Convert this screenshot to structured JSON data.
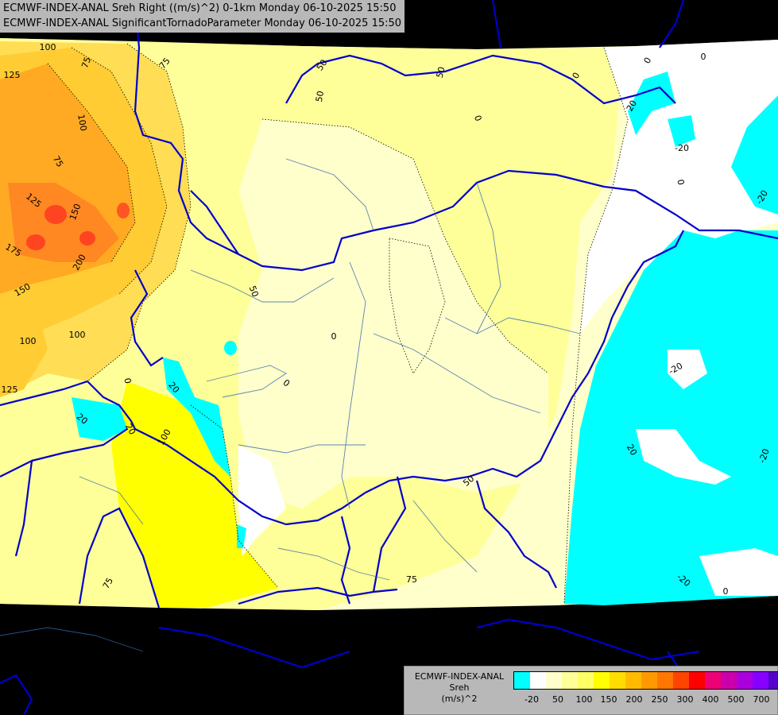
{
  "header": {
    "line1": "ECMWF-INDEX-ANAL Sreh Right ((m/s)^2) 0-1km Monday 06-10-2025 15:50",
    "line2": "ECMWF-INDEX-ANAL SignificantTornadoParameter Monday 06-10-2025 15:50"
  },
  "contour_labels": [
    {
      "text": "100"
    },
    {
      "text": "75"
    },
    {
      "text": "75"
    },
    {
      "text": "125"
    },
    {
      "text": "100"
    },
    {
      "text": "75"
    },
    {
      "text": "125"
    },
    {
      "text": "150"
    },
    {
      "text": "175"
    },
    {
      "text": "200"
    },
    {
      "text": "150"
    },
    {
      "text": "100"
    },
    {
      "text": "100"
    },
    {
      "text": "125"
    },
    {
      "text": "50"
    },
    {
      "text": "50"
    },
    {
      "text": "50"
    },
    {
      "text": "0"
    },
    {
      "text": "0"
    },
    {
      "text": "0"
    },
    {
      "text": "0"
    },
    {
      "text": "20"
    },
    {
      "text": "20"
    },
    {
      "text": "-20"
    },
    {
      "text": "0"
    },
    {
      "text": "-20"
    },
    {
      "text": "50"
    },
    {
      "text": "0"
    },
    {
      "text": "0"
    },
    {
      "text": "0"
    },
    {
      "text": "20"
    },
    {
      "text": "100"
    },
    {
      "text": "-20"
    },
    {
      "text": "20"
    },
    {
      "text": "50"
    },
    {
      "text": "-20"
    },
    {
      "text": "20"
    },
    {
      "text": "75"
    },
    {
      "text": "75"
    },
    {
      "text": "-20"
    },
    {
      "text": "0"
    }
  ],
  "legend": {
    "title_lines": [
      "ECMWF-INDEX-ANAL",
      "Sreh",
      "(m/s)^2"
    ],
    "swatch_colors": [
      "#00ffff",
      "#ffffff",
      "#ffffcc",
      "#ffff99",
      "#ffff66",
      "#ffff00",
      "#ffdd00",
      "#ffbb00",
      "#ff9900",
      "#ff7700",
      "#ff4400",
      "#ff0000",
      "#ee0077",
      "#cc00aa",
      "#aa00dd",
      "#8800ff",
      "#5500cc",
      "#220088"
    ],
    "tick_labels": [
      "-20",
      "50",
      "100",
      "150",
      "200",
      "250",
      "300",
      "400",
      "500",
      "700"
    ]
  }
}
